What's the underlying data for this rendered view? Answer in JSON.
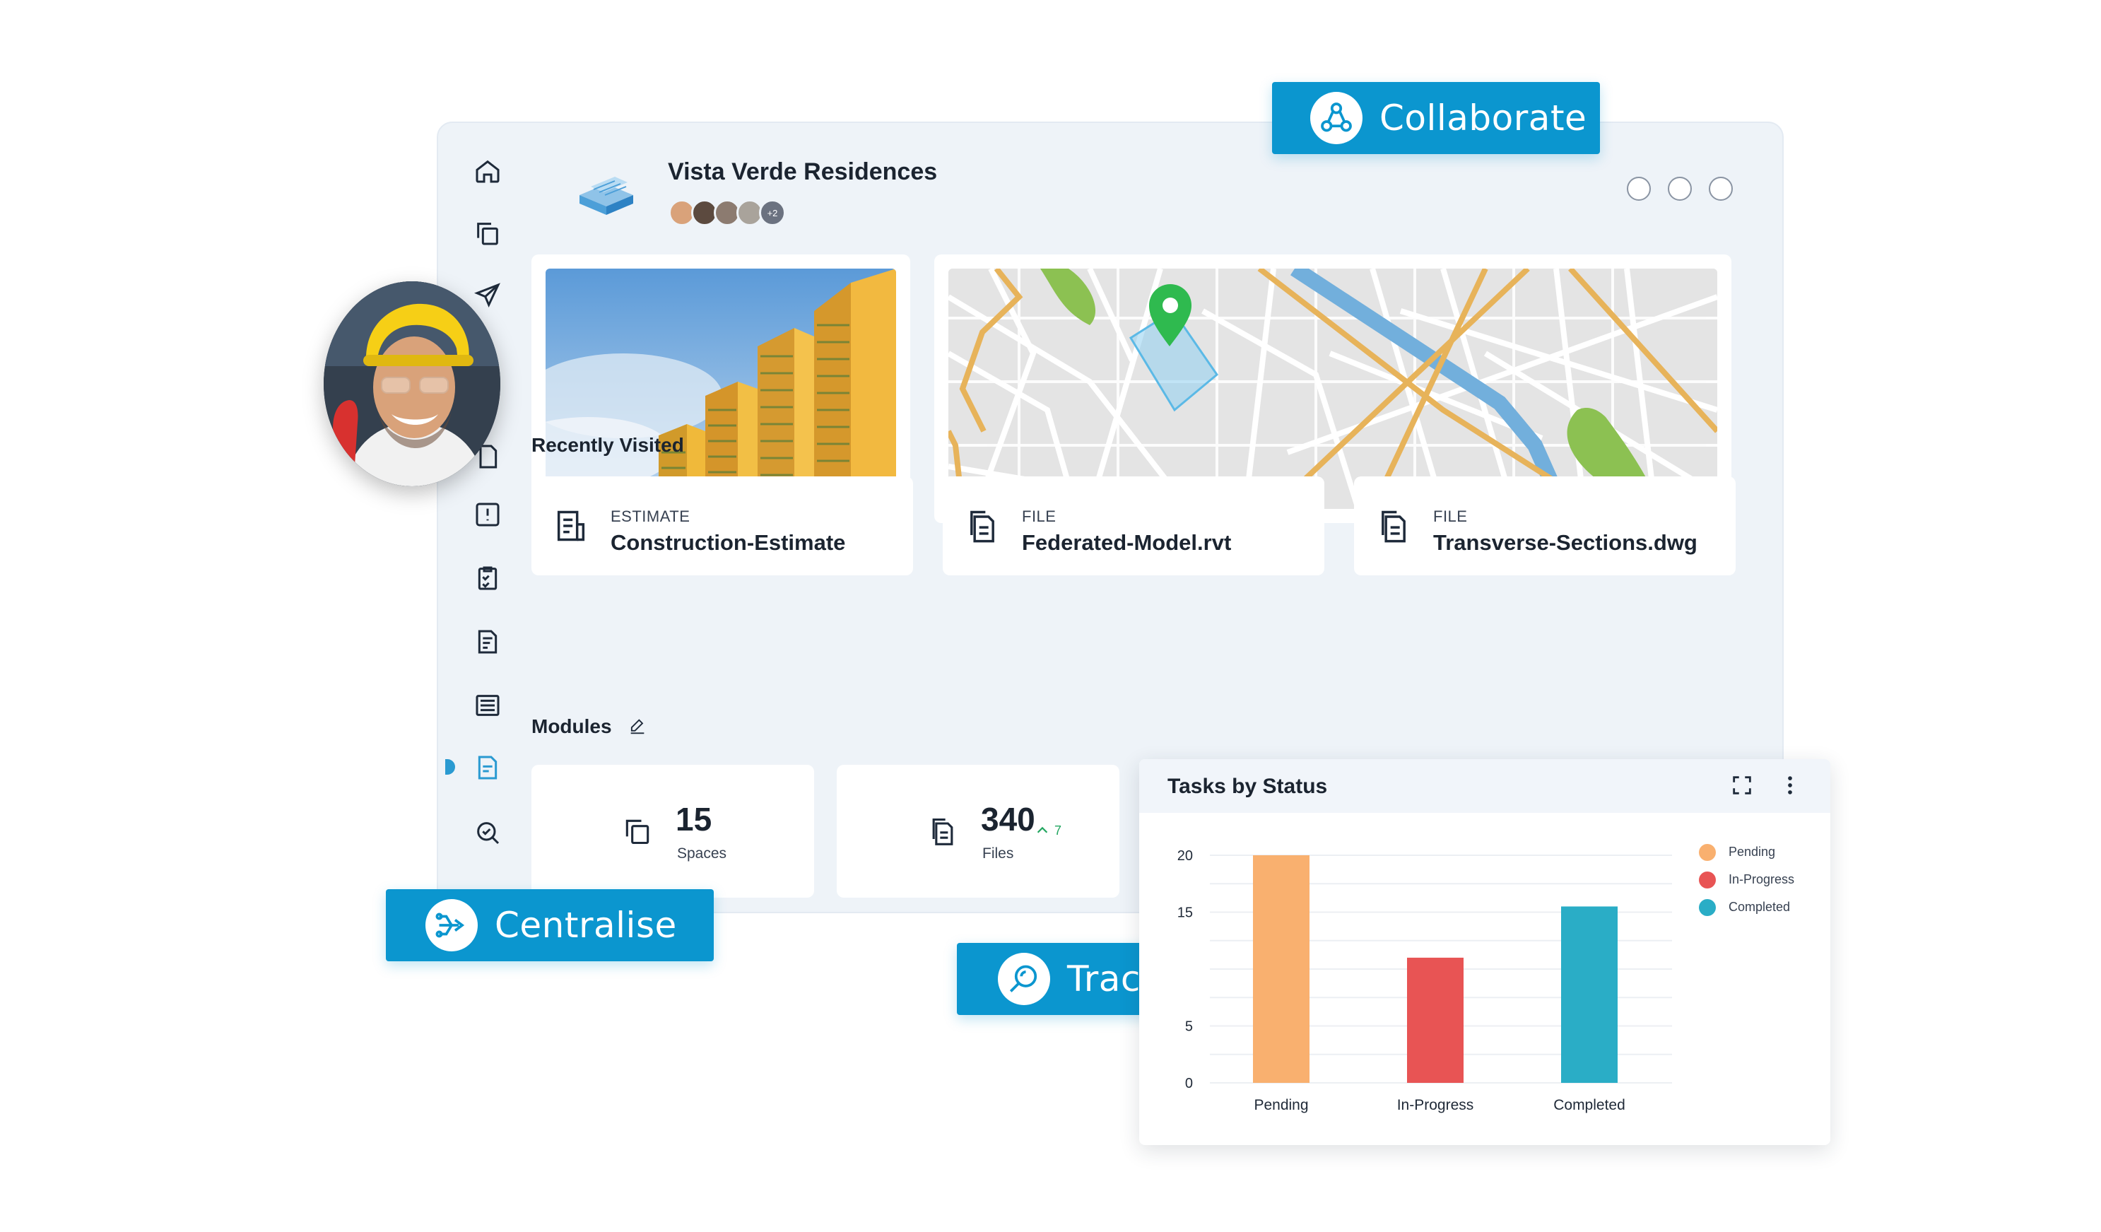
{
  "project": {
    "title": "Vista Verde Residences",
    "avatar_more": "+2"
  },
  "floating": {
    "collaborate": "Collaborate",
    "centralise": "Centralise",
    "track": "Track"
  },
  "sidebar": {
    "items": [
      "home-icon",
      "copy-icon",
      "send-icon",
      "doc-icon",
      "alert-icon",
      "clipboard-check-icon",
      "doc-edit-icon",
      "newspaper-icon",
      "active-doc-icon",
      "search-check-icon"
    ]
  },
  "recent": {
    "title": "Recently Visited",
    "items": [
      {
        "kind": "ESTIMATE",
        "name": "Construction-Estimate"
      },
      {
        "kind": "FILE",
        "name": "Federated-Model.rvt"
      },
      {
        "kind": "FILE",
        "name": "Transverse-Sections.dwg"
      }
    ]
  },
  "modules": {
    "title": "Modules",
    "items": [
      {
        "value": "15",
        "label": "Spaces"
      },
      {
        "value": "340",
        "label": "Files",
        "trend": "7"
      }
    ]
  },
  "chart": {
    "title": "Tasks by Status"
  },
  "chart_data": {
    "type": "bar",
    "title": "Tasks by Status",
    "categories": [
      "Pending",
      "In-Progress",
      "Completed"
    ],
    "values": [
      20,
      11,
      15.5
    ],
    "colors": [
      "#f9b06f",
      "#e85454",
      "#2aadc6"
    ],
    "ylim": [
      0,
      20
    ],
    "yticks": [
      0,
      5,
      15,
      20
    ],
    "legend": [
      "Pending",
      "In-Progress",
      "Completed"
    ],
    "legend_position": "top-right",
    "grid": true
  }
}
